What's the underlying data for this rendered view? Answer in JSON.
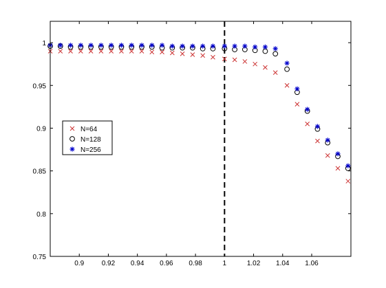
{
  "chart_data": {
    "type": "scatter",
    "x": [
      0.88,
      0.887,
      0.894,
      0.901,
      0.908,
      0.915,
      0.922,
      0.929,
      0.936,
      0.943,
      0.95,
      0.957,
      0.964,
      0.971,
      0.978,
      0.985,
      0.992,
      1.0,
      1.007,
      1.014,
      1.021,
      1.028,
      1.035,
      1.043,
      1.05,
      1.057,
      1.064,
      1.071,
      1.078,
      1.085
    ],
    "series": [
      {
        "name": "N=64",
        "marker": "x",
        "color": "#cc3333",
        "values": [
          0.99,
          0.99,
          0.99,
          0.99,
          0.99,
          0.99,
          0.99,
          0.99,
          0.99,
          0.99,
          0.989,
          0.989,
          0.988,
          0.987,
          0.986,
          0.985,
          0.983,
          0.981,
          0.98,
          0.978,
          0.975,
          0.971,
          0.965,
          0.95,
          0.928,
          0.905,
          0.885,
          0.868,
          0.853,
          0.838
        ]
      },
      {
        "name": "N=128",
        "marker": "o",
        "color": "#000000",
        "values": [
          0.996,
          0.996,
          0.995,
          0.995,
          0.995,
          0.995,
          0.995,
          0.995,
          0.995,
          0.995,
          0.995,
          0.994,
          0.994,
          0.994,
          0.994,
          0.993,
          0.993,
          0.993,
          0.992,
          0.992,
          0.991,
          0.99,
          0.987,
          0.969,
          0.942,
          0.92,
          0.899,
          0.883,
          0.867,
          0.853
        ]
      },
      {
        "name": "N=256",
        "marker": "*",
        "color": "#0000cc",
        "values": [
          0.997,
          0.997,
          0.997,
          0.997,
          0.997,
          0.997,
          0.997,
          0.997,
          0.997,
          0.997,
          0.997,
          0.997,
          0.996,
          0.996,
          0.996,
          0.996,
          0.996,
          0.996,
          0.996,
          0.996,
          0.995,
          0.995,
          0.993,
          0.976,
          0.946,
          0.922,
          0.902,
          0.886,
          0.87,
          0.856
        ]
      }
    ],
    "xlim": [
      0.88,
      1.087
    ],
    "ylim": [
      0.75,
      1.025
    ],
    "xticks": [
      "0.9",
      "0.92",
      "0.94",
      "0.96",
      "0.98",
      "1",
      "1.02",
      "1.04",
      "1.06"
    ],
    "xtick_values": [
      0.9,
      0.92,
      0.94,
      0.96,
      0.98,
      1.0,
      1.02,
      1.04,
      1.06
    ],
    "yticks": [
      "0.75",
      "0.8",
      "0.85",
      "0.9",
      "0.95",
      "1"
    ],
    "ytick_values": [
      0.75,
      0.8,
      0.85,
      0.9,
      0.95,
      1.0
    ],
    "vline_x": 1.0,
    "vline_style": "dashed",
    "legend_position": "left",
    "grid": false
  }
}
